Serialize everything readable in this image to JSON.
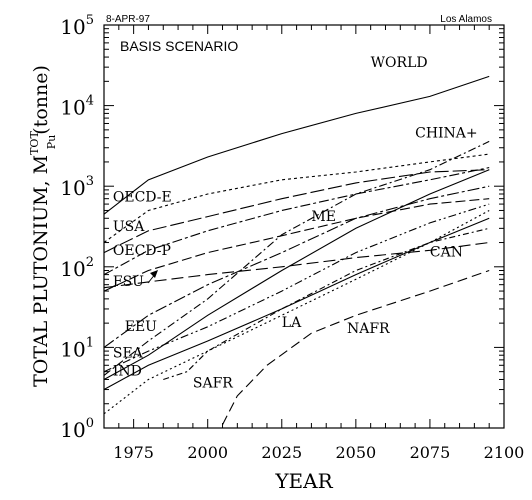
{
  "header": {
    "date": "8-APR-97",
    "source": "Los Alamos"
  },
  "chart_data": {
    "type": "line",
    "scale": "log",
    "title": "BASIS SCENARIO",
    "xlabel": "YEAR",
    "ylabel_main": "TOTAL PLUTONIUM, M",
    "ylabel_sup": "TOT",
    "ylabel_sub": "Pu",
    "ylabel_unit": "(tonne)",
    "xlim": [
      1965,
      2100
    ],
    "ylim": [
      1,
      100000
    ],
    "x_ticks": [
      1975,
      2000,
      2025,
      2050,
      2075,
      2100
    ],
    "y_ticks": [
      {
        "value": 1,
        "base": "10",
        "exp": "0"
      },
      {
        "value": 10,
        "base": "10",
        "exp": "1"
      },
      {
        "value": 100,
        "base": "10",
        "exp": "2"
      },
      {
        "value": 1000,
        "base": "10",
        "exp": "3"
      },
      {
        "value": 10000,
        "base": "10",
        "exp": "4"
      },
      {
        "value": 100000,
        "base": "10",
        "exp": "5"
      }
    ],
    "series": [
      {
        "name": "WORLD",
        "dash": "",
        "points": [
          [
            1965,
            450
          ],
          [
            1980,
            1200
          ],
          [
            2000,
            2300
          ],
          [
            2025,
            4500
          ],
          [
            2050,
            8000
          ],
          [
            2075,
            13000
          ],
          [
            2095,
            23000
          ]
        ]
      },
      {
        "name": "OECD-E",
        "dash": "3,3",
        "points": [
          [
            1965,
            200
          ],
          [
            1980,
            500
          ],
          [
            2000,
            800
          ],
          [
            2025,
            1200
          ],
          [
            2050,
            1500
          ],
          [
            2075,
            2000
          ],
          [
            2095,
            2500
          ]
        ]
      },
      {
        "name": "CHINA+",
        "dash": "8,3,2,3",
        "points": [
          [
            1965,
            4.5
          ],
          [
            1980,
            12
          ],
          [
            2000,
            40
          ],
          [
            2025,
            250
          ],
          [
            2050,
            800
          ],
          [
            2075,
            1600
          ],
          [
            2095,
            3600
          ]
        ]
      },
      {
        "name": "USA",
        "dash": "14,4",
        "points": [
          [
            1965,
            150
          ],
          [
            1980,
            280
          ],
          [
            2000,
            420
          ],
          [
            2025,
            700
          ],
          [
            2050,
            1100
          ],
          [
            2075,
            1500
          ],
          [
            2095,
            1600
          ]
        ]
      },
      {
        "name": "OECD-P",
        "dash": "10,3,3,3",
        "points": [
          [
            1965,
            80
          ],
          [
            1980,
            160
          ],
          [
            2000,
            280
          ],
          [
            2025,
            500
          ],
          [
            2050,
            800
          ],
          [
            2075,
            1200
          ],
          [
            2095,
            1700
          ]
        ]
      },
      {
        "name": "FSU",
        "dash": "10,4",
        "points": [
          [
            1965,
            50
          ],
          [
            1980,
            90
          ],
          [
            2000,
            150
          ],
          [
            2020,
            220
          ],
          [
            2050,
            400
          ],
          [
            2075,
            600
          ],
          [
            2095,
            700
          ]
        ]
      },
      {
        "name": "ME",
        "dash": "",
        "points": [
          [
            1965,
            4
          ],
          [
            1980,
            8
          ],
          [
            2000,
            25
          ],
          [
            2025,
            90
          ],
          [
            2050,
            300
          ],
          [
            2075,
            800
          ],
          [
            2095,
            1600
          ]
        ]
      },
      {
        "name": "EEU",
        "dash": "12,3,3,3",
        "points": [
          [
            1965,
            10
          ],
          [
            1980,
            25
          ],
          [
            2000,
            60
          ],
          [
            2025,
            150
          ],
          [
            2050,
            400
          ],
          [
            2075,
            700
          ],
          [
            2095,
            1000
          ]
        ]
      },
      {
        "name": "CAN",
        "dash": "12,5",
        "points": [
          [
            1965,
            55
          ],
          [
            1980,
            65
          ],
          [
            2000,
            80
          ],
          [
            2025,
            100
          ],
          [
            2050,
            130
          ],
          [
            2075,
            160
          ],
          [
            2095,
            200
          ]
        ]
      },
      {
        "name": "SEA",
        "dash": "8,3,2,3,2,3",
        "points": [
          [
            1965,
            5
          ],
          [
            1980,
            9
          ],
          [
            2000,
            18
          ],
          [
            2025,
            50
          ],
          [
            2050,
            150
          ],
          [
            2075,
            350
          ],
          [
            2095,
            600
          ]
        ]
      },
      {
        "name": "IND",
        "dash": "",
        "points": [
          [
            1965,
            3
          ],
          [
            1980,
            6
          ],
          [
            2000,
            12
          ],
          [
            2025,
            30
          ],
          [
            2050,
            80
          ],
          [
            2075,
            200
          ],
          [
            2095,
            400
          ]
        ]
      },
      {
        "name": "LA",
        "dash": "2,3",
        "points": [
          [
            1965,
            1.5
          ],
          [
            1980,
            4
          ],
          [
            2000,
            9
          ],
          [
            2025,
            25
          ],
          [
            2050,
            70
          ],
          [
            2075,
            200
          ],
          [
            2095,
            500
          ]
        ]
      },
      {
        "name": "NAFR",
        "dash": "10,5",
        "points": [
          [
            2005,
            1.1
          ],
          [
            2010,
            2.5
          ],
          [
            2020,
            6
          ],
          [
            2035,
            15
          ],
          [
            2050,
            25
          ],
          [
            2075,
            50
          ],
          [
            2095,
            90
          ]
        ]
      },
      {
        "name": "SAFR",
        "dash": "6,3,2,3",
        "points": [
          [
            1985,
            4
          ],
          [
            1993,
            5
          ],
          [
            2000,
            9
          ],
          [
            2025,
            30
          ],
          [
            2050,
            90
          ],
          [
            2075,
            200
          ],
          [
            2095,
            300
          ]
        ]
      }
    ],
    "labels": [
      {
        "text": "WORLD",
        "x": 2055,
        "y": 30000
      },
      {
        "text": "CHINA+",
        "x": 2070,
        "y": 4000
      },
      {
        "text": "OECD-E",
        "x": 1968,
        "y": 650
      },
      {
        "text": "USA",
        "x": 1968,
        "y": 280
      },
      {
        "text": "OECD-P",
        "x": 1968,
        "y": 140
      },
      {
        "text": "FSU",
        "x": 1968,
        "y": 58
      },
      {
        "text": "ME",
        "x": 2035,
        "y": 370
      },
      {
        "text": "EEU",
        "x": 1972,
        "y": 16
      },
      {
        "text": "CAN",
        "x": 2075,
        "y": 135
      },
      {
        "text": "SEA",
        "x": 1968,
        "y": 7.5
      },
      {
        "text": "IND",
        "x": 1968,
        "y": 4.5
      },
      {
        "text": "LA",
        "x": 2025,
        "y": 18
      },
      {
        "text": "NAFR",
        "x": 2047,
        "y": 15
      },
      {
        "text": "SAFR",
        "x": 1995,
        "y": 3.2
      }
    ]
  }
}
